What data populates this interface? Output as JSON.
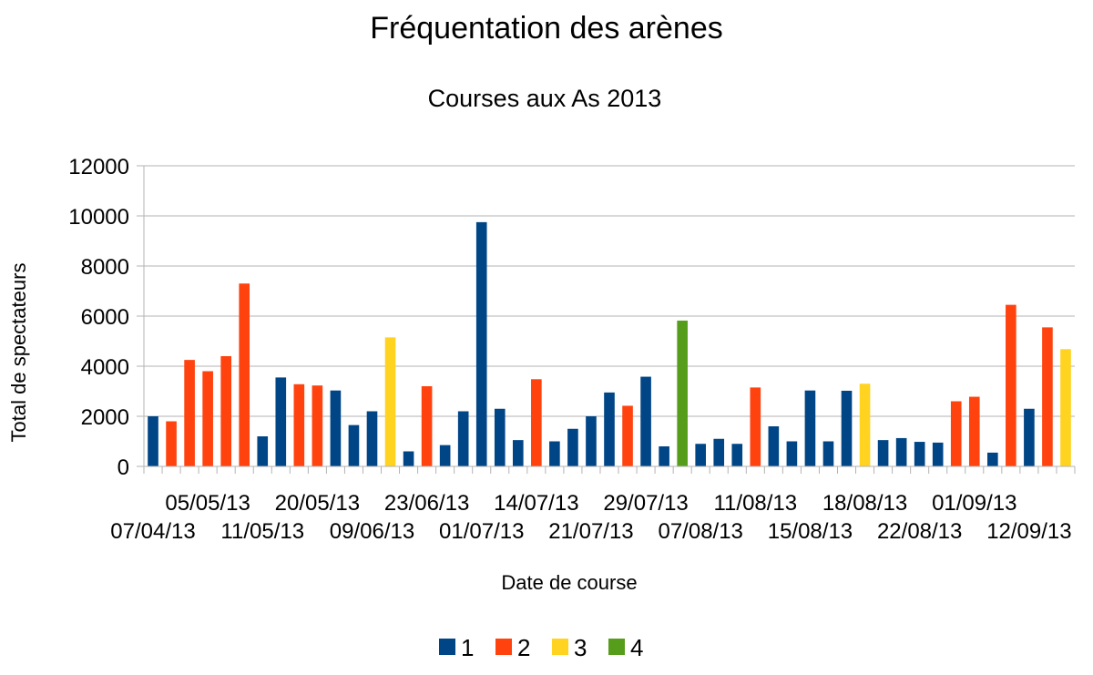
{
  "chart_data": {
    "type": "bar",
    "title": "Fréquentation des arènes",
    "subtitle": "Courses aux As 2013",
    "xlabel": "Date de course",
    "ylabel": "Total de spectateurs",
    "ylim": [
      0,
      12000
    ],
    "yticks": [
      0,
      2000,
      4000,
      6000,
      8000,
      10000,
      12000
    ],
    "grid": true,
    "legend_position": "bottom",
    "series": [
      {
        "name": "1",
        "color": "#004586"
      },
      {
        "name": "2",
        "color": "#ff420e"
      },
      {
        "name": "3",
        "color": "#ffd320"
      },
      {
        "name": "4",
        "color": "#579d1c"
      }
    ],
    "values": [
      2000,
      1800,
      4250,
      3800,
      4400,
      7300,
      1200,
      3550,
      3280,
      3230,
      3030,
      1650,
      2200,
      5150,
      600,
      3200,
      850,
      2200,
      9750,
      2300,
      1050,
      3480,
      1000,
      1500,
      2000,
      2950,
      2420,
      3580,
      800,
      5820,
      900,
      1100,
      900,
      3150,
      1600,
      1000,
      3030,
      1000,
      3020,
      3300,
      1050,
      1130,
      980,
      950,
      2600,
      2780,
      550,
      6450,
      2300,
      5550,
      4680
    ],
    "series_index": [
      0,
      1,
      1,
      1,
      1,
      1,
      0,
      0,
      1,
      1,
      0,
      0,
      0,
      2,
      0,
      1,
      0,
      0,
      0,
      0,
      0,
      1,
      0,
      0,
      0,
      0,
      1,
      0,
      0,
      3,
      0,
      0,
      0,
      1,
      0,
      0,
      0,
      0,
      0,
      2,
      0,
      0,
      0,
      0,
      1,
      1,
      0,
      1,
      0,
      1,
      2
    ],
    "x_tick_labels": [
      {
        "index": 0,
        "label": "07/04/13",
        "row": 2
      },
      {
        "index": 3,
        "label": "05/05/13",
        "row": 1
      },
      {
        "index": 6,
        "label": "11/05/13",
        "row": 2
      },
      {
        "index": 9,
        "label": "20/05/13",
        "row": 1
      },
      {
        "index": 12,
        "label": "09/06/13",
        "row": 2
      },
      {
        "index": 15,
        "label": "23/06/13",
        "row": 1
      },
      {
        "index": 18,
        "label": "01/07/13",
        "row": 2
      },
      {
        "index": 21,
        "label": "14/07/13",
        "row": 1
      },
      {
        "index": 24,
        "label": "21/07/13",
        "row": 2
      },
      {
        "index": 27,
        "label": "29/07/13",
        "row": 1
      },
      {
        "index": 30,
        "label": "07/08/13",
        "row": 2
      },
      {
        "index": 33,
        "label": "11/08/13",
        "row": 1
      },
      {
        "index": 36,
        "label": "15/08/13",
        "row": 2
      },
      {
        "index": 39,
        "label": "18/08/13",
        "row": 1
      },
      {
        "index": 42,
        "label": "22/08/13",
        "row": 2
      },
      {
        "index": 45,
        "label": "01/09/13",
        "row": 1
      },
      {
        "index": 48,
        "label": "12/09/13",
        "row": 2
      }
    ]
  }
}
